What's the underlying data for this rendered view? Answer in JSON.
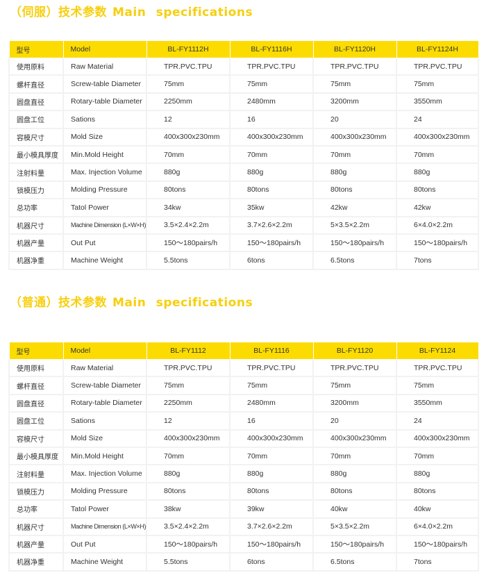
{
  "sections": [
    {
      "title_zh": "（伺服）技术参数",
      "title_en": "Main specifications",
      "header": {
        "zh": "型号",
        "en": "Model",
        "models": [
          "BL-FY1112H",
          "BL-FY1116H",
          "BL-FY1120H",
          "BL-FY1124H"
        ]
      },
      "rows": [
        {
          "zh": "使用原料",
          "en": "Raw Material",
          "values": [
            "TPR.PVC.TPU",
            "TPR.PVC.TPU",
            "TPR.PVC.TPU",
            "TPR.PVC.TPU"
          ]
        },
        {
          "zh": "螺杆直径",
          "en": "Screw-table Diameter",
          "values": [
            "75mm",
            "75mm",
            "75mm",
            "75mm"
          ]
        },
        {
          "zh": "圆盘直径",
          "en": "Rotary-table Diameter",
          "values": [
            "2250mm",
            "2480mm",
            "3200mm",
            "3550mm"
          ]
        },
        {
          "zh": "圆盘工位",
          "en": "Sations",
          "values": [
            "12",
            "16",
            "20",
            "24"
          ]
        },
        {
          "zh": "容模尺寸",
          "en": "Mold Size",
          "values": [
            "400x300x230mm",
            "400x300x230mm",
            "400x300x230mm",
            "400x300x230mm"
          ]
        },
        {
          "zh": "最小模具厚度",
          "en": "Min.Mold Height",
          "values": [
            "70mm",
            "70mm",
            "70mm",
            "70mm"
          ]
        },
        {
          "zh": "注射料量",
          "en": "Max. Injection Volume",
          "values": [
            "880g",
            "880g",
            "880g",
            "880g"
          ]
        },
        {
          "zh": "锁模压力",
          "en": "Molding Pressure",
          "values": [
            "80tons",
            "80tons",
            "80tons",
            "80tons"
          ]
        },
        {
          "zh": "总功率",
          "en": "Tatol Power",
          "values": [
            "34kw",
            "35kw",
            "42kw",
            "42kw"
          ]
        },
        {
          "zh": "机器尺寸",
          "en": "Machine Dimension (L×W×H)",
          "values": [
            "3.5×2.4×2.2m",
            "3.7×2.6×2.2m",
            "5×3.5×2.2m",
            "6×4.0×2.2m"
          ]
        },
        {
          "zh": "机器产量",
          "en": "Out Put",
          "values": [
            "150〜180pairs/h",
            "150〜180pairs/h",
            "150〜180pairs/h",
            "150〜180pairs/h"
          ]
        },
        {
          "zh": "机器净重",
          "en": "Machine Weight",
          "values": [
            "5.5tons",
            "6tons",
            "6.5tons",
            "7tons"
          ]
        }
      ]
    },
    {
      "title_zh": "（普通）技术参数",
      "title_en": "Main specifications",
      "header": {
        "zh": "型号",
        "en": "Model",
        "models": [
          "BL-FY1112",
          "BL-FY1116",
          "BL-FY1120",
          "BL-FY1124"
        ]
      },
      "rows": [
        {
          "zh": "使用原料",
          "en": "Raw Material",
          "values": [
            "TPR.PVC.TPU",
            "TPR.PVC.TPU",
            "TPR.PVC.TPU",
            "TPR.PVC.TPU"
          ]
        },
        {
          "zh": "螺杆直径",
          "en": "Screw-table Diameter",
          "values": [
            "75mm",
            "75mm",
            "75mm",
            "75mm"
          ]
        },
        {
          "zh": "圆盘直径",
          "en": "Rotary-table Diameter",
          "values": [
            "2250mm",
            "2480mm",
            "3200mm",
            "3550mm"
          ]
        },
        {
          "zh": "圆盘工位",
          "en": "Sations",
          "values": [
            "12",
            "16",
            "20",
            "24"
          ]
        },
        {
          "zh": "容模尺寸",
          "en": "Mold Size",
          "values": [
            "400x300x230mm",
            "400x300x230mm",
            "400x300x230mm",
            "400x300x230mm"
          ]
        },
        {
          "zh": "最小模具厚度",
          "en": "Min.Mold Height",
          "values": [
            "70mm",
            "70mm",
            "70mm",
            "70mm"
          ]
        },
        {
          "zh": "注射料量",
          "en": "Max. Injection Volume",
          "values": [
            "880g",
            "880g",
            "880g",
            "880g"
          ]
        },
        {
          "zh": "锁模压力",
          "en": "Molding Pressure",
          "values": [
            "80tons",
            "80tons",
            "80tons",
            "80tons"
          ]
        },
        {
          "zh": "总功率",
          "en": "Tatol Power",
          "values": [
            "38kw",
            "39kw",
            "40kw",
            "40kw"
          ]
        },
        {
          "zh": "机器尺寸",
          "en": "Machine Dimension (L×W×H)",
          "values": [
            "3.5×2.4×2.2m",
            "3.7×2.6×2.2m",
            "5×3.5×2.2m",
            "6×4.0×2.2m"
          ]
        },
        {
          "zh": "机器产量",
          "en": "Out Put",
          "values": [
            "150〜180pairs/h",
            "150〜180pairs/h",
            "150〜180pairs/h",
            "150〜180pairs/h"
          ]
        },
        {
          "zh": "机器净重",
          "en": "Machine Weight",
          "values": [
            "5.5tons",
            "6tons",
            "6.5tons",
            "7tons"
          ]
        }
      ]
    }
  ]
}
